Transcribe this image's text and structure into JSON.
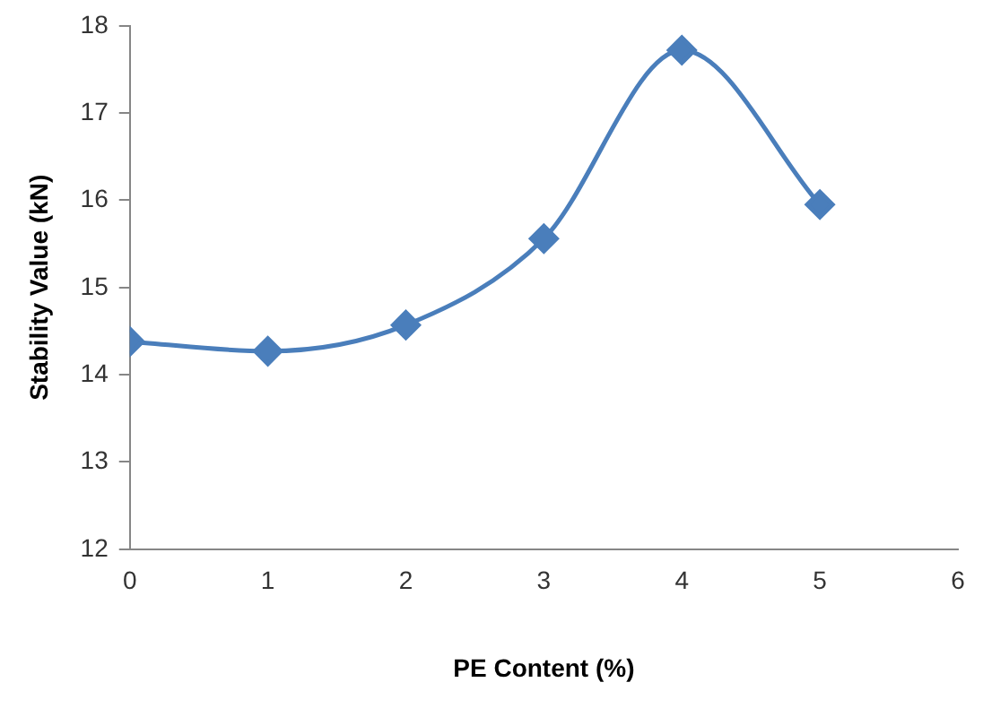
{
  "chart_data": {
    "type": "line",
    "xlabel": "PE Content (%)",
    "ylabel": "Stability Value (kN)",
    "x": [
      0,
      1,
      2,
      3,
      4,
      5
    ],
    "series": [
      {
        "color": "#4a7ebb",
        "values": [
          14.38,
          14.27,
          14.57,
          15.56,
          17.72,
          15.95
        ]
      }
    ],
    "xlim": [
      0,
      6
    ],
    "xticks": [
      0,
      1,
      2,
      3,
      4,
      5,
      6
    ],
    "ylim": [
      12,
      18
    ],
    "yticks": [
      12,
      13,
      14,
      15,
      16,
      17,
      18
    ],
    "grid": false,
    "legend": false,
    "marker": "diamond",
    "line_style": "solid"
  }
}
